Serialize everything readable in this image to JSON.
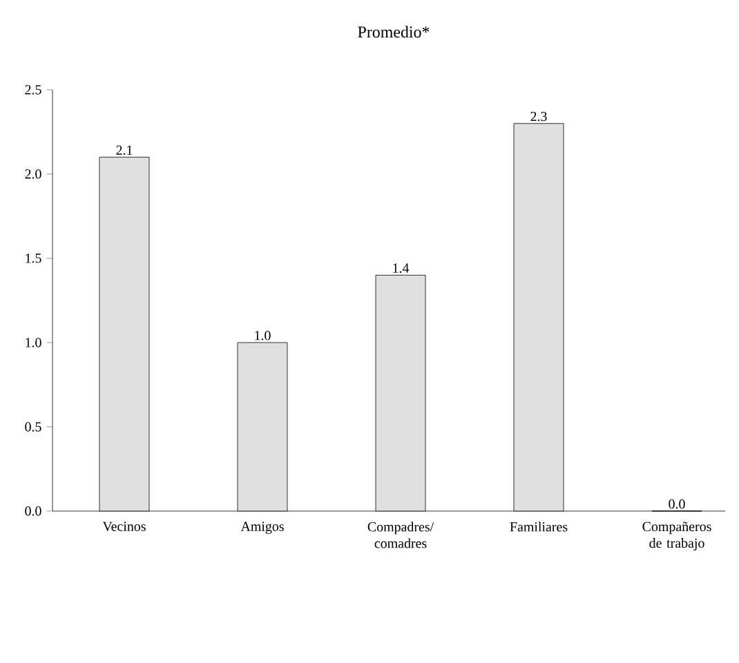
{
  "chart_data": {
    "type": "bar",
    "title": "Promedio*",
    "categories": [
      "Vecinos",
      "Amigos",
      "Compadres/ comadres",
      "Familiares",
      "Compañeros de trabajo"
    ],
    "values": [
      2.1,
      1.0,
      1.4,
      2.3,
      0.0
    ],
    "value_labels": [
      "2.1",
      "1.0",
      "1.4",
      "2.3",
      "0.0"
    ],
    "color": "#e0e0e0",
    "ylim": [
      0,
      2.5
    ],
    "yticks": [
      {
        "value": 0,
        "label": "0.0"
      },
      {
        "value": 0.5,
        "label": "0.5"
      },
      {
        "value": 1,
        "label": "1.0"
      },
      {
        "value": 1.5,
        "label": "1.5"
      },
      {
        "value": 2,
        "label": "2.0"
      },
      {
        "value": 2.5,
        "label": "2.5"
      }
    ],
    "grid": false
  }
}
